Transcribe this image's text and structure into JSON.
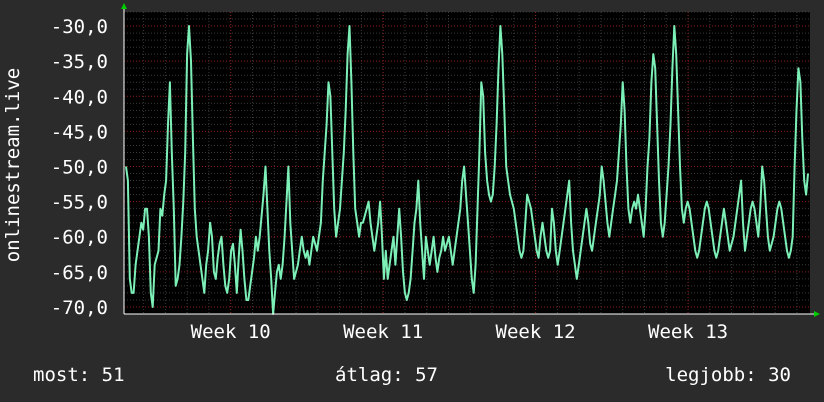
{
  "colors": {
    "background": "#2b2b2b",
    "plot_background": "#000000",
    "grid_major": "#8b1a1a",
    "grid_minor": "#3a3a3a",
    "line": "#7df0b8",
    "axis_arrow": "#00cc00"
  },
  "chart_data": {
    "type": "line",
    "title": "",
    "xlabel": "",
    "ylabel": "onlinestream.live",
    "ylim": [
      -71,
      -28
    ],
    "yticks": [
      -30,
      -35,
      -40,
      -45,
      -50,
      -55,
      -60,
      -65,
      -70
    ],
    "ytick_labels": [
      "-30,0",
      "-35,0",
      "-40,0",
      "-45,0",
      "-50,0",
      "-55,0",
      "-60,0",
      "-65,0",
      "-70,0"
    ],
    "xlim": [
      9.3,
      13.8
    ],
    "xticks": [
      10,
      11,
      12,
      13
    ],
    "xtick_labels": [
      "Week 10",
      "Week 11",
      "Week 12",
      "Week 13"
    ],
    "grid": true,
    "series": [
      {
        "values": [
          -50,
          -52,
          -66,
          -68,
          -68,
          -64,
          -62,
          -60,
          -58,
          -59,
          -56,
          -56,
          -60,
          -68,
          -70,
          -64,
          -63,
          -62,
          -56,
          -57,
          -54,
          -52,
          -44,
          -38,
          -48,
          -56,
          -67,
          -66,
          -64,
          -60,
          -55,
          -48,
          -34,
          -30,
          -35,
          -46,
          -56,
          -60,
          -62,
          -64,
          -66,
          -68,
          -64,
          -62,
          -58,
          -60,
          -65,
          -66,
          -63,
          -61,
          -60,
          -64,
          -67,
          -68,
          -66,
          -62,
          -61,
          -64,
          -68,
          -63,
          -59,
          -62,
          -66,
          -69,
          -69,
          -67,
          -65,
          -63,
          -60,
          -62,
          -60,
          -57,
          -54,
          -50,
          -56,
          -62,
          -66,
          -71,
          -68,
          -65,
          -64,
          -66,
          -64,
          -60,
          -55,
          -50,
          -58,
          -62,
          -66,
          -65,
          -64,
          -62,
          -60,
          -62,
          -63,
          -62,
          -64,
          -62,
          -60,
          -61,
          -62,
          -60,
          -58,
          -52,
          -48,
          -44,
          -38,
          -40,
          -48,
          -56,
          -60,
          -58,
          -56,
          -52,
          -48,
          -42,
          -34,
          -30,
          -38,
          -48,
          -56,
          -58,
          -60,
          -58,
          -58,
          -57,
          -56,
          -55,
          -58,
          -60,
          -62,
          -60,
          -58,
          -55,
          -60,
          -66,
          -62,
          -66,
          -64,
          -62,
          -60,
          -64,
          -60,
          -56,
          -60,
          -65,
          -68,
          -69,
          -68,
          -66,
          -62,
          -58,
          -56,
          -52,
          -58,
          -62,
          -66,
          -60,
          -62,
          -64,
          -62,
          -60,
          -63,
          -65,
          -63,
          -62,
          -60,
          -62,
          -61,
          -60,
          -62,
          -64,
          -62,
          -60,
          -58,
          -56,
          -52,
          -50,
          -54,
          -58,
          -62,
          -66,
          -68,
          -64,
          -56,
          -48,
          -38,
          -40,
          -48,
          -52,
          -54,
          -55,
          -54,
          -50,
          -44,
          -36,
          -30,
          -34,
          -42,
          -50,
          -52,
          -54,
          -55,
          -56,
          -58,
          -60,
          -62,
          -63,
          -62,
          -58,
          -54,
          -55,
          -56,
          -58,
          -60,
          -62,
          -63,
          -60,
          -58,
          -60,
          -62,
          -63,
          -62,
          -56,
          -58,
          -62,
          -64,
          -62,
          -60,
          -58,
          -56,
          -54,
          -52,
          -58,
          -62,
          -64,
          -66,
          -64,
          -62,
          -60,
          -58,
          -56,
          -58,
          -61,
          -62,
          -60,
          -58,
          -56,
          -54,
          -50,
          -52,
          -55,
          -58,
          -60,
          -58,
          -56,
          -54,
          -52,
          -48,
          -44,
          -38,
          -42,
          -50,
          -56,
          -58,
          -56,
          -55,
          -56,
          -54,
          -56,
          -58,
          -60,
          -56,
          -50,
          -46,
          -38,
          -34,
          -36,
          -44,
          -52,
          -58,
          -60,
          -58,
          -54,
          -50,
          -44,
          -36,
          -30,
          -34,
          -42,
          -50,
          -56,
          -58,
          -56,
          -55,
          -56,
          -58,
          -60,
          -62,
          -63,
          -62,
          -60,
          -58,
          -56,
          -55,
          -56,
          -58,
          -60,
          -62,
          -63,
          -62,
          -60,
          -58,
          -56,
          -58,
          -60,
          -62,
          -61,
          -60,
          -58,
          -56,
          -54,
          -52,
          -58,
          -62,
          -60,
          -58,
          -56,
          -55,
          -56,
          -58,
          -60,
          -56,
          -50,
          -52,
          -56,
          -60,
          -62,
          -61,
          -60,
          -58,
          -56,
          -55,
          -56,
          -58,
          -60,
          -62,
          -63,
          -62,
          -60,
          -50,
          -42,
          -36,
          -38,
          -46,
          -52,
          -54,
          -51
        ]
      }
    ]
  },
  "stats": {
    "current_label": "most: 51",
    "average_label": "átlag: 57",
    "best_label": "legjobb: 30"
  }
}
